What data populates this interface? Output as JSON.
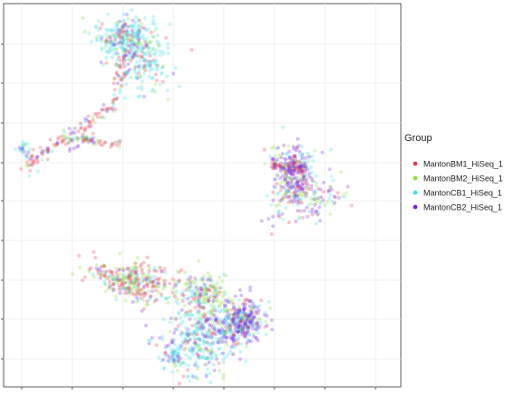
{
  "chart_data": {
    "type": "scatter",
    "title": "",
    "xlabel": "",
    "ylabel": "",
    "xlim": [
      0,
      100
    ],
    "ylim": [
      0,
      100
    ],
    "grid": true,
    "legend_position": "right",
    "legend_title": "Group",
    "series": [
      {
        "name": "MantonBM1_HiSeq_1",
        "color": "#E8384F"
      },
      {
        "name": "MantonBM2_HiSeq_1",
        "color": "#8FE034"
      },
      {
        "name": "MantonCB1_HiSeq_1",
        "color": "#3FE0E8"
      },
      {
        "name": "MantonCB2_HiSeq_1",
        "color": "#7A1FE8"
      }
    ],
    "clusters": [
      {
        "center": [
          31,
          91
        ],
        "spread": [
          4,
          3
        ],
        "n": 260,
        "mix": [
          0.12,
          0.12,
          0.64,
          0.12
        ]
      },
      {
        "center": [
          35,
          84
        ],
        "spread": [
          3,
          4
        ],
        "n": 140,
        "mix": [
          0.15,
          0.1,
          0.65,
          0.1
        ]
      },
      {
        "center": [
          5,
          62
        ],
        "spread": [
          0.7,
          1
        ],
        "n": 20,
        "mix": [
          0.1,
          0.1,
          0.7,
          0.1
        ]
      },
      {
        "center": [
          7,
          59
        ],
        "spread": [
          1.5,
          1.5
        ],
        "n": 25,
        "mix": [
          0.5,
          0.1,
          0.2,
          0.2
        ]
      },
      {
        "center": [
          18,
          65
        ],
        "spread": [
          2,
          1.5
        ],
        "n": 30,
        "mix": [
          0.3,
          0.2,
          0.2,
          0.3
        ]
      },
      {
        "center": [
          73,
          56
        ],
        "spread": [
          3,
          4
        ],
        "n": 230,
        "mix": [
          0.18,
          0.12,
          0.18,
          0.52
        ]
      },
      {
        "center": [
          78,
          49
        ],
        "spread": [
          4,
          3
        ],
        "n": 110,
        "mix": [
          0.2,
          0.3,
          0.2,
          0.3
        ]
      },
      {
        "center": [
          60,
          17
        ],
        "spread": [
          3,
          3
        ],
        "n": 320,
        "mix": [
          0.12,
          0.14,
          0.24,
          0.5
        ]
      },
      {
        "center": [
          50,
          13
        ],
        "spread": [
          4,
          5
        ],
        "n": 300,
        "mix": [
          0.12,
          0.12,
          0.56,
          0.2
        ]
      },
      {
        "center": [
          34,
          28
        ],
        "spread": [
          5,
          2.5
        ],
        "n": 230,
        "mix": [
          0.4,
          0.35,
          0.15,
          0.1
        ]
      },
      {
        "center": [
          50,
          24
        ],
        "spread": [
          4,
          3
        ],
        "n": 180,
        "mix": [
          0.18,
          0.4,
          0.27,
          0.15
        ]
      },
      {
        "center": [
          43,
          7
        ],
        "spread": [
          1.5,
          1.5
        ],
        "n": 40,
        "mix": [
          0.1,
          0.1,
          0.6,
          0.2
        ]
      }
    ],
    "trails": [
      {
        "from": [
          7,
          59
        ],
        "to": [
          28,
          74
        ],
        "n": 90,
        "spread": 0.8,
        "mix": [
          0.55,
          0.15,
          0.15,
          0.15
        ]
      },
      {
        "from": [
          28,
          74
        ],
        "to": [
          31,
          91
        ],
        "n": 60,
        "spread": 0.8,
        "mix": [
          0.5,
          0.1,
          0.25,
          0.15
        ]
      },
      {
        "from": [
          18,
          65
        ],
        "to": [
          30,
          63
        ],
        "n": 45,
        "spread": 0.5,
        "mix": [
          0.45,
          0.25,
          0.1,
          0.2
        ]
      },
      {
        "from": [
          67,
          58
        ],
        "to": [
          76,
          57
        ],
        "n": 80,
        "spread": 0.6,
        "mix": [
          0.45,
          0.15,
          0.1,
          0.3
        ]
      },
      {
        "from": [
          67,
          42
        ],
        "to": [
          74,
          55
        ],
        "n": 40,
        "spread": 1.5,
        "mix": [
          0.2,
          0.2,
          0.3,
          0.3
        ]
      },
      {
        "from": [
          22,
          32
        ],
        "to": [
          38,
          22
        ],
        "n": 80,
        "spread": 1.5,
        "mix": [
          0.45,
          0.25,
          0.15,
          0.15
        ]
      },
      {
        "from": [
          38,
          10
        ],
        "to": [
          62,
          16
        ],
        "n": 60,
        "spread": 3,
        "mix": [
          0.1,
          0.1,
          0.3,
          0.5
        ]
      }
    ]
  }
}
